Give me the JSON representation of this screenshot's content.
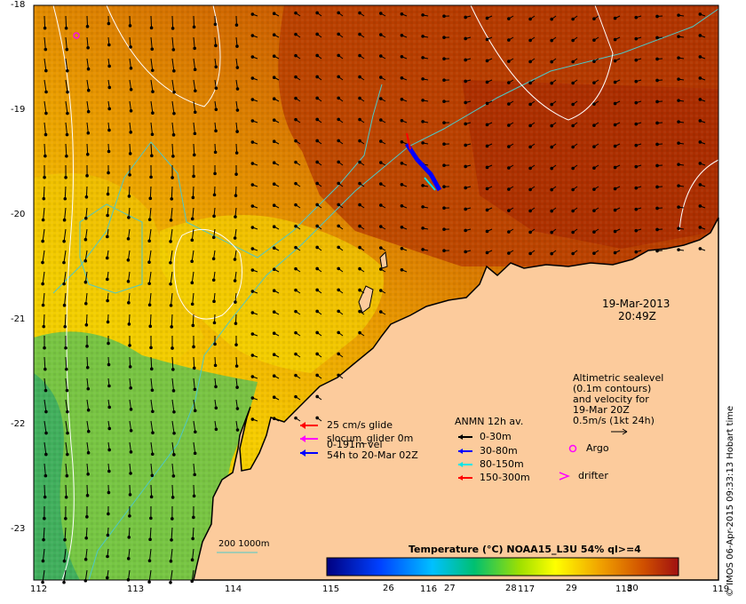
{
  "map": {
    "date": "19-Mar-2013",
    "time": "20:49Z",
    "lon_ticks": [
      "112",
      "113",
      "114",
      "115",
      "116",
      "117",
      "118",
      "119"
    ],
    "lat_ticks": [
      "-18",
      "-19",
      "-20",
      "-21",
      "-22",
      "-23"
    ],
    "lon_range": [
      112,
      119
    ],
    "lat_range": [
      -23.5,
      -18
    ],
    "credit": "© IMOS 06-Apr-2015 09:33:13 Hobart time",
    "sealevel_note": [
      "Altimetric sealevel",
      "(0.1m contours)",
      "and velocity for",
      "19-Mar 20Z",
      "0.5m/s (1kt 24h)"
    ],
    "argo_label": "Argo",
    "drifter_label": "drifter",
    "glider_legend": [
      "25 cm/s glide",
      "slocum_glider 0m",
      "0-191m vel",
      "54h to 20-Mar 02Z"
    ],
    "anmn": {
      "title": "ANMN 12h av.",
      "items": [
        {
          "label": "0-30m",
          "color": "#000000"
        },
        {
          "label": "30-80m",
          "color": "#0000ff"
        },
        {
          "label": "80-150m",
          "color": "#00e5e5"
        },
        {
          "label": "150-300m",
          "color": "#ff0000"
        }
      ]
    },
    "isobath_label": "200  1000m",
    "colorbar": {
      "title": "Temperature (°C) NOAA15_L3U 54% ql>=4",
      "ticks": [
        "26",
        "27",
        "28",
        "29",
        "30"
      ],
      "range": [
        25,
        30.8
      ]
    },
    "colors": {
      "land": "#fccb9c",
      "ocean_warm": "#b83a00",
      "ocean_mid": "#e89a00",
      "ocean_cool": "#ffe600",
      "ocean_cold": "#3cb850",
      "isobath": "#4dc8c8",
      "contour": "#ffffff",
      "argo": "#ff00ff"
    }
  }
}
